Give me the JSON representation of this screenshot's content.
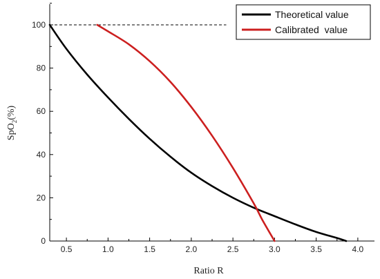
{
  "chart_data": {
    "type": "line",
    "xlabel": "Ratio R",
    "ylabel_main": "SpO",
    "ylabel_sub": "2",
    "ylabel_tail": "(%)",
    "xlim": [
      0.3,
      4.2
    ],
    "ylim": [
      0,
      110
    ],
    "x_ticks": [
      0.5,
      1.0,
      1.5,
      2.0,
      2.5,
      3.0,
      3.5,
      4.0
    ],
    "x_tick_labels": [
      "0.5",
      "1.0",
      "1.5",
      "2.0",
      "2.5",
      "3.0",
      "3.5",
      "4.0"
    ],
    "y_ticks": [
      0,
      20,
      40,
      60,
      80,
      100
    ],
    "y_tick_labels": [
      "0",
      "20",
      "40",
      "60",
      "80",
      "100"
    ],
    "reference_line": {
      "y": 100,
      "x_from": 0.3,
      "x_to": 2.42,
      "style": "dashed"
    },
    "legend_position": "top-right",
    "series": [
      {
        "name": "Theoretical value",
        "color": "#000000",
        "x": [
          0.3,
          0.5,
          0.75,
          1.0,
          1.25,
          1.5,
          1.75,
          2.0,
          2.25,
          2.5,
          2.75,
          3.0,
          3.25,
          3.5,
          3.75,
          3.86
        ],
        "y": [
          100,
          88.9,
          77.0,
          66.4,
          56.5,
          47.3,
          39.0,
          31.6,
          25.4,
          20.0,
          15.4,
          11.5,
          7.7,
          4.2,
          1.4,
          0
        ]
      },
      {
        "name": "Calibrated  value",
        "color": "#cc1f1f",
        "x": [
          0.87,
          1.0,
          1.25,
          1.5,
          1.75,
          2.0,
          2.25,
          2.5,
          2.75,
          2.85,
          3.0
        ],
        "y": [
          100,
          97.0,
          91.0,
          83.2,
          73.6,
          62.0,
          48.7,
          33.8,
          17.4,
          10.0,
          0
        ]
      }
    ]
  }
}
